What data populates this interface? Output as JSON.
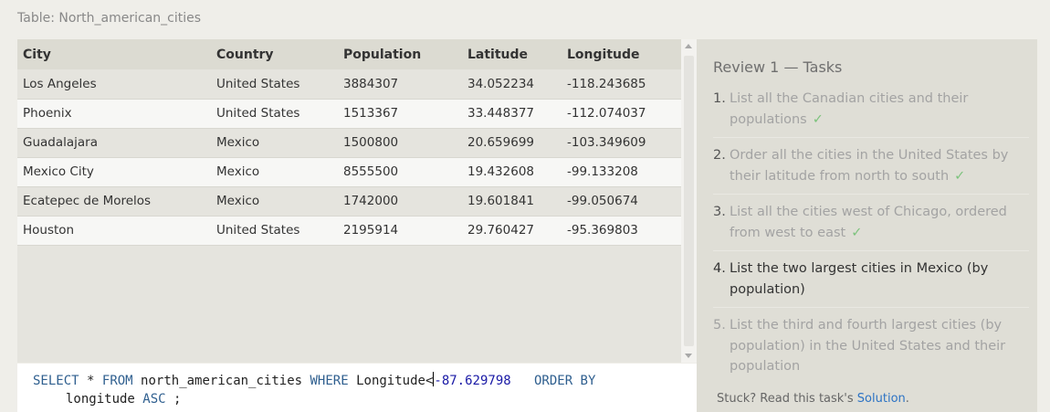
{
  "table_caption": "Table: North_american_cities",
  "results": {
    "headers": [
      "City",
      "Country",
      "Population",
      "Latitude",
      "Longitude"
    ],
    "rows": [
      [
        "Los Angeles",
        "United States",
        "3884307",
        "34.052234",
        "-118.243685"
      ],
      [
        "Phoenix",
        "United States",
        "1513367",
        "33.448377",
        "-112.074037"
      ],
      [
        "Guadalajara",
        "Mexico",
        "1500800",
        "20.659699",
        "-103.349609"
      ],
      [
        "Mexico City",
        "Mexico",
        "8555500",
        "19.432608",
        "-99.133208"
      ],
      [
        "Ecatepec de Morelos",
        "Mexico",
        "1742000",
        "19.601841",
        "-99.050674"
      ],
      [
        "Houston",
        "United States",
        "2195914",
        "29.760427",
        "-95.369803"
      ]
    ]
  },
  "editor": {
    "kw_select": "SELECT",
    "star": "*",
    "kw_from": "FROM",
    "table": "north_american_cities",
    "kw_where": "WHERE",
    "column": "Longitude",
    "op": "<",
    "value": "-87.629798",
    "kw_order": "ORDER BY",
    "order_col": "longitude",
    "kw_asc": "ASC",
    "terminator": ";"
  },
  "tasks": {
    "title": "Review 1 — Tasks",
    "items": [
      {
        "num": "1.",
        "text": "List all the Canadian cities and their populations",
        "check": "✓",
        "state": "done"
      },
      {
        "num": "2.",
        "text": "Order all the cities in the United States by their latitude from north to south",
        "check": "✓",
        "state": "done"
      },
      {
        "num": "3.",
        "text": "List all the cities west of Chicago, ordered from west to east",
        "check": "✓",
        "state": "done"
      },
      {
        "num": "4.",
        "text": "List the two largest cities in Mexico (by population)",
        "check": "",
        "state": "current"
      },
      {
        "num": "5.",
        "text": "List the third and fourth largest cities (by population) in the United States and their population",
        "check": "",
        "state": "pending"
      }
    ],
    "stuck_text": "Stuck? Read this task's ",
    "solution_label": "Solution",
    "stuck_end": "."
  },
  "colors": {
    "keyword": "#2f5f8f",
    "number": "#1a1aa6",
    "check": "#7dc37d",
    "link": "#2d73c4"
  }
}
